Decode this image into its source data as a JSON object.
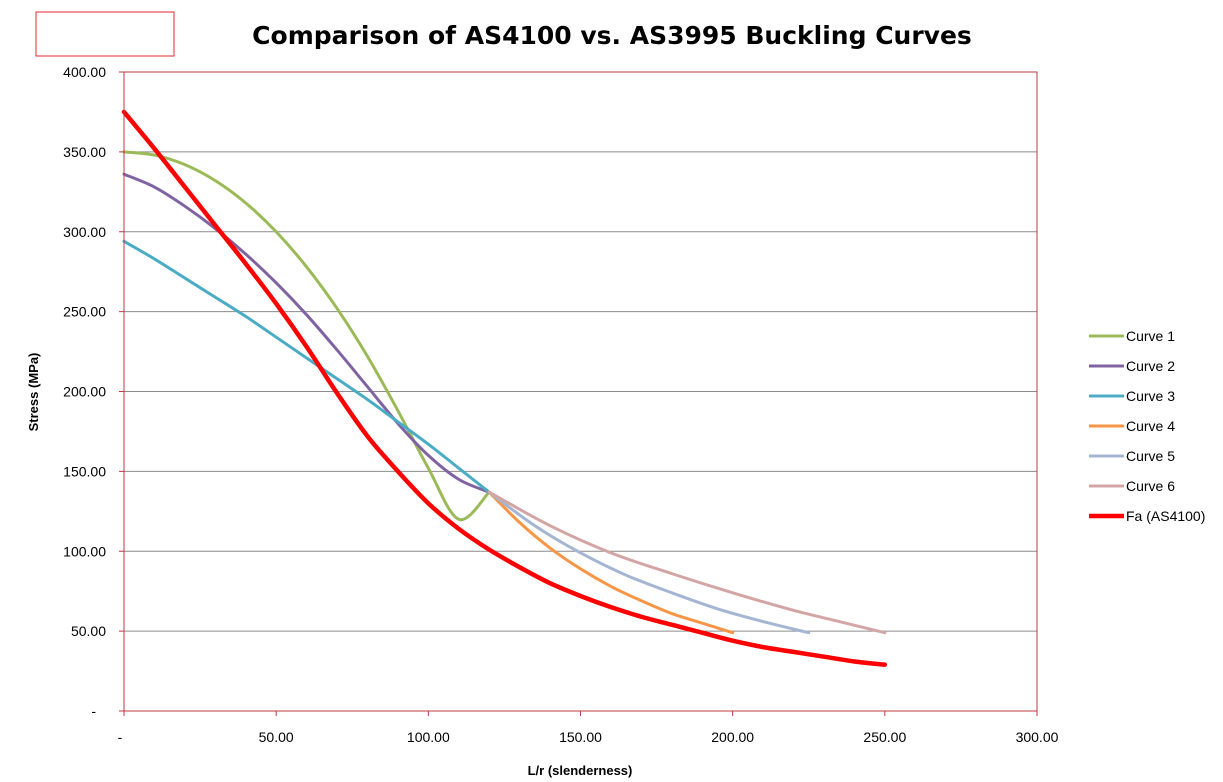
{
  "chart_data": {
    "type": "line",
    "title": "Comparison of AS4100 vs. AS3995 Buckling Curves",
    "xlabel": "L/r (slenderness)",
    "ylabel": "Stress (MPa)",
    "xlim": [
      0,
      300
    ],
    "ylim": [
      0,
      400
    ],
    "x_ticks": [
      0,
      50,
      100,
      150,
      200,
      250,
      300
    ],
    "x_tick_labels": [
      "-",
      "50.00",
      "100.00",
      "150.00",
      "200.00",
      "250.00",
      "300.00"
    ],
    "y_ticks": [
      0,
      50,
      100,
      150,
      200,
      250,
      300,
      350,
      400
    ],
    "y_tick_labels": [
      "-",
      "50.00",
      "100.00",
      "150.00",
      "200.00",
      "250.00",
      "300.00",
      "350.00",
      "400.00"
    ],
    "grid": "horizontal",
    "legend_position": "right",
    "series": [
      {
        "name": "Curve 1",
        "color": "#9bbb59",
        "x": [
          0,
          10,
          20,
          30,
          40,
          50,
          60,
          70,
          80,
          90,
          100,
          110,
          120
        ],
        "y": [
          350,
          348,
          342,
          332,
          318,
          300,
          278,
          252,
          222,
          188,
          152,
          120,
          137
        ]
      },
      {
        "name": "Curve 2",
        "color": "#8064a2",
        "x": [
          0,
          10,
          20,
          30,
          40,
          50,
          60,
          70,
          80,
          90,
          100,
          110,
          120
        ],
        "y": [
          336,
          328,
          316,
          302,
          286,
          268,
          248,
          226,
          203,
          180,
          160,
          145,
          137
        ]
      },
      {
        "name": "Curve 3",
        "color": "#4bacc6",
        "x": [
          0,
          10,
          20,
          30,
          40,
          50,
          60,
          70,
          80,
          90,
          100,
          110,
          120
        ],
        "y": [
          294,
          283,
          271,
          259,
          247,
          234,
          221,
          208,
          195,
          181,
          167,
          152,
          137
        ]
      },
      {
        "name": "Curve 4",
        "color": "#f79646",
        "x": [
          120,
          130,
          140,
          150,
          160,
          170,
          180,
          190,
          200
        ],
        "y": [
          137,
          118,
          102,
          89,
          78,
          69,
          61,
          55,
          49
        ]
      },
      {
        "name": "Curve 5",
        "color": "#a5b6d3",
        "x": [
          120,
          135,
          150,
          165,
          180,
          195,
          210,
          225
        ],
        "y": [
          137,
          116,
          99,
          85,
          74,
          64,
          56,
          49
        ]
      },
      {
        "name": "Curve 6",
        "color": "#d4a5a5",
        "x": [
          120,
          140,
          160,
          180,
          200,
          220,
          235,
          250
        ],
        "y": [
          137,
          116,
          99,
          86,
          74,
          63,
          56,
          49
        ]
      },
      {
        "name": "Fa (AS4100)",
        "color": "#ff0000",
        "x": [
          0,
          10,
          20,
          30,
          40,
          50,
          60,
          70,
          80,
          90,
          100,
          110,
          120,
          130,
          140,
          150,
          160,
          170,
          180,
          190,
          200,
          210,
          220,
          230,
          240,
          250
        ],
        "y": [
          375,
          352,
          328,
          304,
          280,
          255,
          228,
          199,
          172,
          150,
          130,
          114,
          101,
          90,
          80,
          72,
          65,
          59,
          54,
          49,
          44,
          40,
          37,
          34,
          31,
          29
        ]
      }
    ]
  }
}
